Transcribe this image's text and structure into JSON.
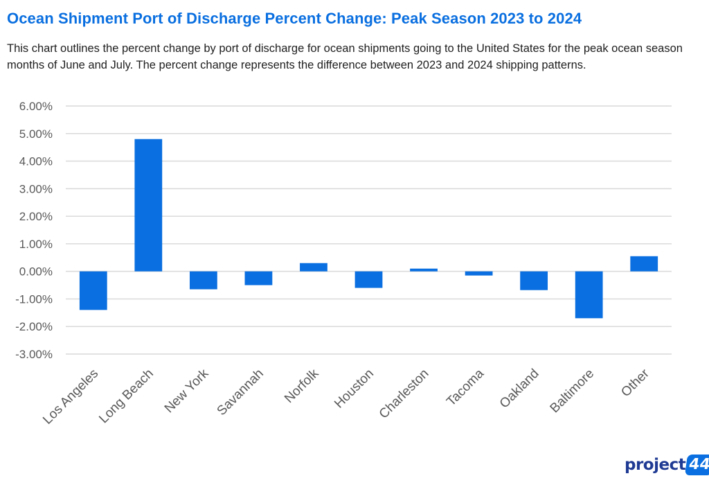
{
  "header": {
    "title": "Ocean Shipment Port of Discharge Percent Change: Peak Season 2023 to 2024",
    "description": "This chart outlines the percent change by port of discharge for ocean shipments going to the United States for the peak ocean season months of June and July. The percent change represents the difference between 2023 and 2024 shipping patterns."
  },
  "chart_data": {
    "type": "bar",
    "title": "",
    "xlabel": "",
    "ylabel": "",
    "categories": [
      "Los Angeles",
      "Long Beach",
      "New York",
      "Savannah",
      "Norfolk",
      "Houston",
      "Charleston",
      "Tacoma",
      "Oakland",
      "Baltimore",
      "Other"
    ],
    "values": [
      -1.4,
      4.8,
      -0.65,
      -0.5,
      0.3,
      -0.6,
      0.1,
      -0.15,
      -0.68,
      -1.7,
      0.55
    ],
    "y_ticks": [
      "6.00%",
      "5.00%",
      "4.00%",
      "3.00%",
      "2.00%",
      "1.00%",
      "0.00%",
      "-1.00%",
      "-2.00%",
      "-3.00%"
    ],
    "ylim": [
      -3,
      6
    ],
    "unit": "%",
    "grid": true,
    "legend": "none",
    "bar_color": "#0a6fe0",
    "grid_color": "#d9d9d9"
  },
  "logo": {
    "word": "project",
    "mark": "44",
    "brand_color": "#1f3a93",
    "accent_color": "#0a6fe0"
  }
}
